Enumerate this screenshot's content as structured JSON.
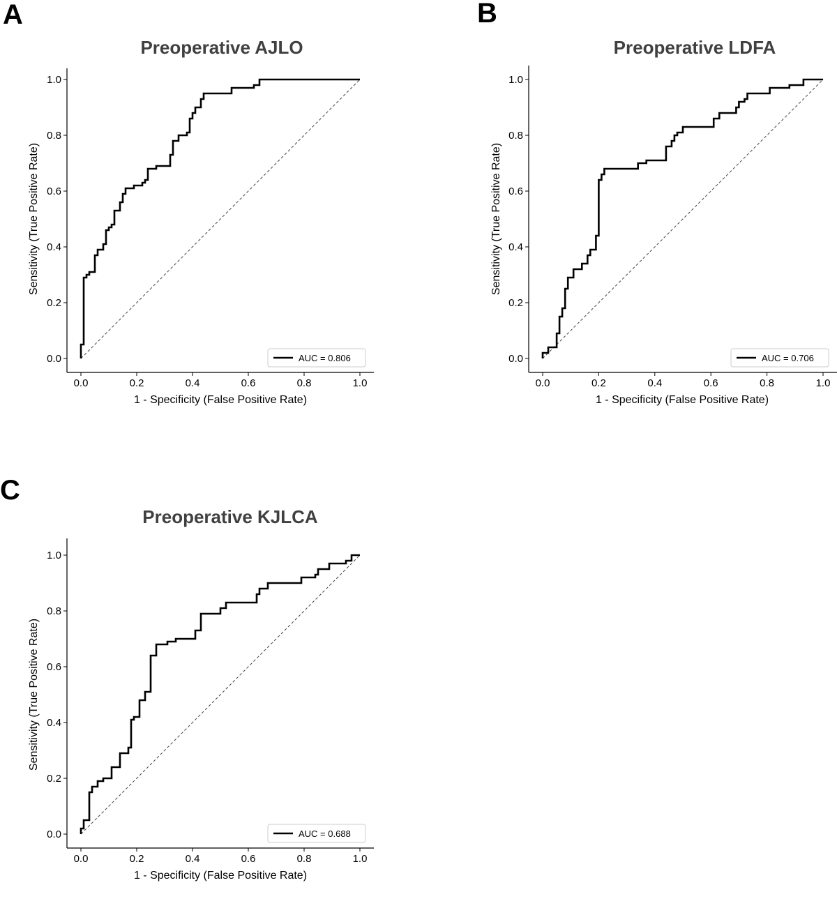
{
  "chart_data": [
    {
      "panel": "A",
      "type": "line",
      "title": "Preoperative AJLO",
      "xlabel": "1 - Specificity (False Positive Rate)",
      "ylabel": "Sensitivity (True Positive Rate)",
      "xlim": [
        0,
        1
      ],
      "ylim": [
        0,
        1
      ],
      "ticks": [
        "0.0",
        "0.2",
        "0.4",
        "0.6",
        "0.8",
        "1.0"
      ],
      "legend_position": "lower-right",
      "grid": false,
      "series": [
        {
          "name": "AUC = 0.806",
          "x": [
            0,
            0,
            0.01,
            0.01,
            0.02,
            0.02,
            0.03,
            0.03,
            0.05,
            0.05,
            0.06,
            0.06,
            0.08,
            0.08,
            0.09,
            0.09,
            0.1,
            0.1,
            0.11,
            0.11,
            0.12,
            0.12,
            0.14,
            0.14,
            0.15,
            0.15,
            0.16,
            0.16,
            0.19,
            0.19,
            0.22,
            0.22,
            0.23,
            0.23,
            0.24,
            0.24,
            0.27,
            0.27,
            0.32,
            0.32,
            0.33,
            0.33,
            0.35,
            0.35,
            0.38,
            0.38,
            0.39,
            0.39,
            0.4,
            0.4,
            0.41,
            0.41,
            0.43,
            0.43,
            0.44,
            0.44,
            0.54,
            0.54,
            0.62,
            0.62,
            0.64,
            0.64,
            0.71,
            0.71,
            1.0
          ],
          "y": [
            0,
            0.05,
            0.05,
            0.29,
            0.29,
            0.3,
            0.3,
            0.31,
            0.31,
            0.37,
            0.37,
            0.39,
            0.39,
            0.41,
            0.41,
            0.46,
            0.46,
            0.47,
            0.47,
            0.48,
            0.48,
            0.53,
            0.53,
            0.56,
            0.56,
            0.59,
            0.59,
            0.61,
            0.61,
            0.62,
            0.62,
            0.63,
            0.63,
            0.64,
            0.64,
            0.68,
            0.68,
            0.69,
            0.69,
            0.73,
            0.73,
            0.78,
            0.78,
            0.8,
            0.8,
            0.81,
            0.81,
            0.86,
            0.86,
            0.88,
            0.88,
            0.9,
            0.9,
            0.93,
            0.93,
            0.95,
            0.95,
            0.97,
            0.97,
            0.98,
            0.98,
            1.0,
            1.0,
            1.0,
            1.0
          ]
        }
      ]
    },
    {
      "panel": "B",
      "type": "line",
      "title": "Preoperative LDFA",
      "xlabel": "1 - Specificity (False Positive Rate)",
      "ylabel": "Sensitivity (True Positive Rate)",
      "xlim": [
        0,
        1
      ],
      "ylim": [
        0,
        1
      ],
      "ticks": [
        "0.0",
        "0.2",
        "0.4",
        "0.6",
        "0.8",
        "1.0"
      ],
      "legend_position": "lower-right",
      "grid": false,
      "series": [
        {
          "name": "AUC = 0.706",
          "x": [
            0,
            0,
            0.02,
            0.02,
            0.05,
            0.05,
            0.06,
            0.06,
            0.07,
            0.07,
            0.08,
            0.08,
            0.09,
            0.09,
            0.11,
            0.11,
            0.14,
            0.14,
            0.16,
            0.16,
            0.17,
            0.17,
            0.19,
            0.19,
            0.2,
            0.2,
            0.21,
            0.21,
            0.22,
            0.22,
            0.34,
            0.34,
            0.37,
            0.37,
            0.44,
            0.44,
            0.46,
            0.46,
            0.47,
            0.47,
            0.48,
            0.48,
            0.5,
            0.5,
            0.52,
            0.52,
            0.61,
            0.61,
            0.63,
            0.63,
            0.69,
            0.69,
            0.7,
            0.7,
            0.72,
            0.72,
            0.73,
            0.73,
            0.81,
            0.81,
            0.88,
            0.88,
            0.93,
            0.93,
            1.0
          ],
          "y": [
            0,
            0.02,
            0.02,
            0.04,
            0.04,
            0.09,
            0.09,
            0.15,
            0.15,
            0.18,
            0.18,
            0.25,
            0.25,
            0.29,
            0.29,
            0.32,
            0.32,
            0.34,
            0.34,
            0.37,
            0.37,
            0.39,
            0.39,
            0.44,
            0.44,
            0.64,
            0.64,
            0.66,
            0.66,
            0.68,
            0.68,
            0.7,
            0.7,
            0.71,
            0.71,
            0.76,
            0.76,
            0.78,
            0.78,
            0.8,
            0.8,
            0.81,
            0.81,
            0.83,
            0.83,
            0.83,
            0.83,
            0.86,
            0.86,
            0.88,
            0.88,
            0.9,
            0.9,
            0.92,
            0.92,
            0.93,
            0.93,
            0.95,
            0.95,
            0.97,
            0.97,
            0.98,
            0.98,
            1.0,
            1.0
          ]
        }
      ]
    },
    {
      "panel": "C",
      "type": "line",
      "title": "Preoperative KJLCA",
      "xlabel": "1 - Specificity (False Positive Rate)",
      "ylabel": "Sensitivity (True Positive Rate)",
      "xlim": [
        0,
        1
      ],
      "ylim": [
        0,
        1
      ],
      "ticks": [
        "0.0",
        "0.2",
        "0.4",
        "0.6",
        "0.8",
        "1.0"
      ],
      "legend_position": "lower-right",
      "grid": false,
      "series": [
        {
          "name": "AUC = 0.688",
          "x": [
            0,
            0,
            0.01,
            0.01,
            0.03,
            0.03,
            0.04,
            0.04,
            0.06,
            0.06,
            0.08,
            0.08,
            0.11,
            0.11,
            0.14,
            0.14,
            0.17,
            0.17,
            0.18,
            0.18,
            0.19,
            0.19,
            0.21,
            0.21,
            0.23,
            0.23,
            0.25,
            0.25,
            0.27,
            0.27,
            0.31,
            0.31,
            0.34,
            0.34,
            0.41,
            0.41,
            0.43,
            0.43,
            0.5,
            0.5,
            0.52,
            0.52,
            0.63,
            0.63,
            0.64,
            0.64,
            0.67,
            0.67,
            0.79,
            0.79,
            0.84,
            0.84,
            0.85,
            0.85,
            0.89,
            0.89,
            0.95,
            0.95,
            0.97,
            0.97,
            1.0
          ],
          "y": [
            0,
            0.02,
            0.02,
            0.05,
            0.05,
            0.15,
            0.15,
            0.17,
            0.17,
            0.19,
            0.19,
            0.2,
            0.2,
            0.24,
            0.24,
            0.29,
            0.29,
            0.31,
            0.31,
            0.41,
            0.41,
            0.42,
            0.42,
            0.48,
            0.48,
            0.51,
            0.51,
            0.64,
            0.64,
            0.68,
            0.68,
            0.69,
            0.69,
            0.7,
            0.7,
            0.73,
            0.73,
            0.79,
            0.79,
            0.81,
            0.81,
            0.83,
            0.83,
            0.86,
            0.86,
            0.88,
            0.88,
            0.9,
            0.9,
            0.92,
            0.92,
            0.93,
            0.93,
            0.95,
            0.95,
            0.97,
            0.97,
            0.98,
            0.98,
            1.0,
            1.0
          ]
        }
      ]
    }
  ]
}
